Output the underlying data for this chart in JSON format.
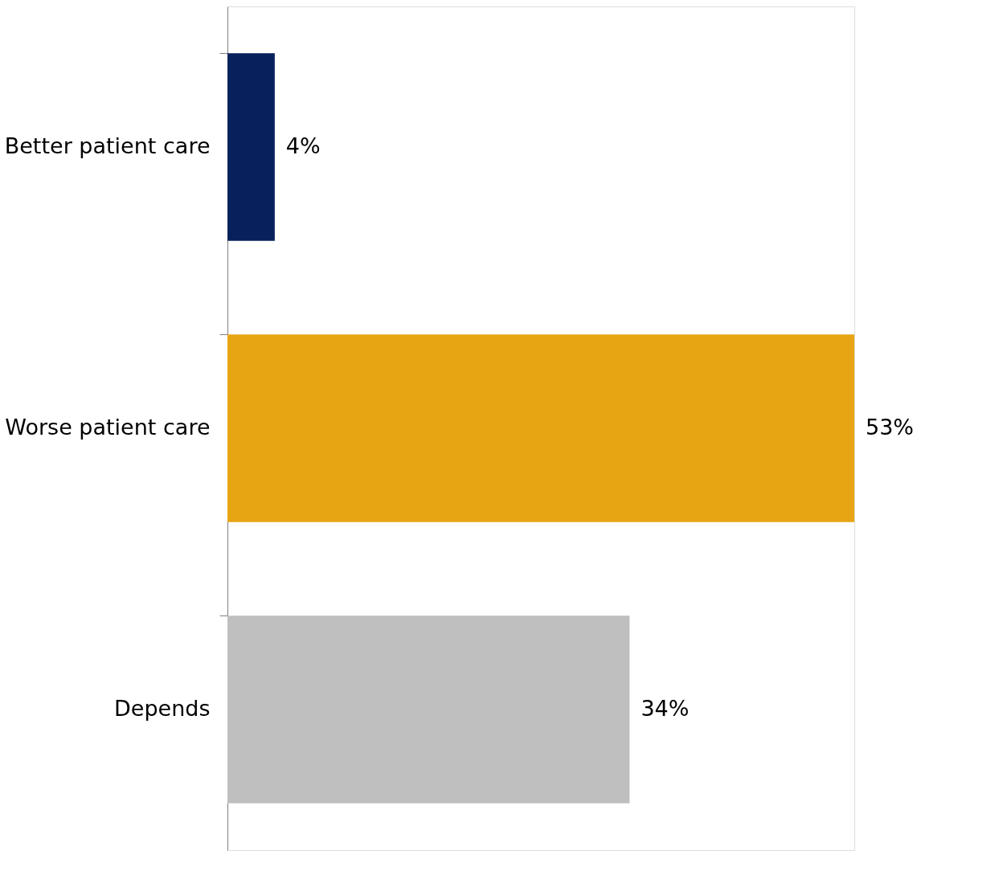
{
  "chart_data": {
    "type": "bar",
    "orientation": "horizontal",
    "categories": [
      "Better patient care",
      "Worse patient care",
      "Depends"
    ],
    "values": [
      4,
      53,
      34
    ],
    "colors": [
      "#08215c",
      "#e8a513",
      "#bfbfbf"
    ],
    "value_labels": [
      "4%",
      "53%",
      "34%"
    ]
  }
}
